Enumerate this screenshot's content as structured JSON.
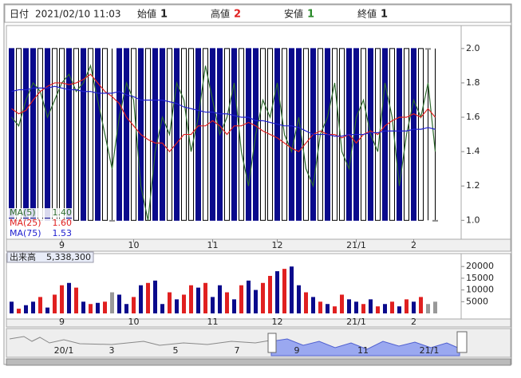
{
  "header": {
    "date_label": "日付",
    "date": "2021/02/10 11:03",
    "open_label": "始値",
    "open": 1,
    "high_label": "高値",
    "high": 2,
    "low_label": "安値",
    "low": 1,
    "close_label": "終値",
    "close": 1
  },
  "chart_data": [
    {
      "type": "candlestick",
      "open": [
        2,
        1,
        2,
        2,
        1,
        2,
        1,
        1,
        2,
        1,
        2,
        1,
        2,
        1,
        1,
        2,
        2,
        1,
        2,
        1,
        2,
        2,
        1,
        2,
        1,
        1,
        2,
        1,
        2,
        2,
        1,
        2,
        1,
        2,
        2,
        1,
        1,
        2,
        1,
        2,
        2,
        1,
        2,
        1,
        2,
        1,
        1,
        2,
        2,
        1,
        2,
        1,
        2,
        1,
        2,
        1,
        2,
        1,
        2,
        1
      ],
      "close": [
        1,
        2,
        1,
        1,
        2,
        1,
        2,
        2,
        1,
        2,
        1,
        2,
        1,
        2,
        1,
        1,
        1,
        2,
        1,
        2,
        1,
        1,
        2,
        1,
        2,
        2,
        1,
        2,
        1,
        1,
        2,
        1,
        2,
        1,
        1,
        2,
        2,
        1,
        2,
        1,
        1,
        2,
        1,
        2,
        1,
        2,
        2,
        1,
        1,
        2,
        1,
        2,
        1,
        2,
        1,
        2,
        1,
        2,
        2,
        1
      ],
      "high": [
        2,
        2,
        2,
        2,
        2,
        2,
        2,
        2,
        2,
        2,
        2,
        2,
        2,
        2,
        2,
        2,
        2,
        2,
        2,
        2,
        2,
        2,
        2,
        2,
        2,
        2,
        2,
        2,
        2,
        2,
        2,
        2,
        2,
        2,
        2,
        2,
        2,
        2,
        2,
        2,
        2,
        2,
        2,
        2,
        2,
        2,
        2,
        2,
        2,
        2,
        2,
        2,
        2,
        2,
        2,
        2,
        2,
        2,
        2,
        2
      ],
      "low": [
        1,
        1,
        1,
        1,
        1,
        1,
        1,
        1,
        1,
        1,
        1,
        1,
        1,
        1,
        1,
        1,
        1,
        1,
        1,
        1,
        1,
        1,
        1,
        1,
        1,
        1,
        1,
        1,
        1,
        1,
        1,
        1,
        1,
        1,
        1,
        1,
        1,
        1,
        1,
        1,
        1,
        1,
        1,
        1,
        1,
        1,
        1,
        1,
        1,
        1,
        1,
        1,
        1,
        1,
        1,
        1,
        1,
        1,
        1,
        1
      ],
      "up_color": "#ffffff",
      "down_color": "#0a0a8c",
      "flat_color": "#888888",
      "series": [
        {
          "name": "MA(5)",
          "color": "#2e6b2e",
          "legend_value": {
            "value": 1.4,
            "label": "1.40"
          },
          "values": [
            1.6,
            1.55,
            1.7,
            1.8,
            1.75,
            1.6,
            1.7,
            1.8,
            1.85,
            1.75,
            1.8,
            1.9,
            1.7,
            1.5,
            1.3,
            1.6,
            1.8,
            1.7,
            1.2,
            1.0,
            1.4,
            1.6,
            1.5,
            1.8,
            1.7,
            1.4,
            1.6,
            1.9,
            1.7,
            1.5,
            1.6,
            1.8,
            1.4,
            1.2,
            1.5,
            1.7,
            1.6,
            1.8,
            1.5,
            1.4,
            1.6,
            1.3,
            1.2,
            1.5,
            1.6,
            1.8,
            1.4,
            1.3,
            1.6,
            1.7,
            1.5,
            1.4,
            1.8,
            1.6,
            1.2,
            1.5,
            1.7,
            1.6,
            1.8,
            1.4
          ]
        },
        {
          "name": "MA(25)",
          "color": "#e02020",
          "legend_value": {
            "value": 1.6,
            "label": "1.60"
          },
          "values": [
            1.65,
            1.62,
            1.64,
            1.7,
            1.75,
            1.78,
            1.8,
            1.8,
            1.79,
            1.8,
            1.82,
            1.85,
            1.8,
            1.75,
            1.72,
            1.68,
            1.6,
            1.55,
            1.5,
            1.47,
            1.45,
            1.45,
            1.4,
            1.45,
            1.5,
            1.5,
            1.55,
            1.55,
            1.58,
            1.55,
            1.5,
            1.55,
            1.55,
            1.57,
            1.55,
            1.52,
            1.5,
            1.48,
            1.45,
            1.42,
            1.4,
            1.45,
            1.5,
            1.52,
            1.5,
            1.5,
            1.48,
            1.5,
            1.45,
            1.5,
            1.52,
            1.5,
            1.55,
            1.58,
            1.6,
            1.6,
            1.62,
            1.6,
            1.65,
            1.6
          ]
        },
        {
          "name": "MA(75)",
          "color": "#2020d0",
          "legend_value": {
            "value": 1.53,
            "label": "1.53"
          },
          "values": [
            1.75,
            1.76,
            1.76,
            1.77,
            1.77,
            1.77,
            1.78,
            1.77,
            1.76,
            1.76,
            1.75,
            1.75,
            1.74,
            1.74,
            1.74,
            1.75,
            1.73,
            1.72,
            1.7,
            1.7,
            1.7,
            1.7,
            1.69,
            1.68,
            1.66,
            1.65,
            1.64,
            1.63,
            1.63,
            1.62,
            1.62,
            1.61,
            1.6,
            1.6,
            1.58,
            1.58,
            1.57,
            1.56,
            1.55,
            1.55,
            1.54,
            1.52,
            1.5,
            1.5,
            1.5,
            1.49,
            1.49,
            1.5,
            1.5,
            1.5,
            1.51,
            1.51,
            1.52,
            1.52,
            1.52,
            1.52,
            1.53,
            1.53,
            1.54,
            1.53
          ]
        }
      ],
      "ylim": [
        0.89,
        2.12
      ],
      "yticks": [
        {
          "value": 1,
          "label": "1.0"
        },
        1.2,
        1.4,
        1.6,
        1.8,
        {
          "value": 2,
          "label": "2.0"
        }
      ],
      "xticks": [
        {
          "value": 7,
          "label": "9"
        },
        {
          "value": 17,
          "label": "10"
        },
        {
          "value": 28,
          "label": "11"
        },
        {
          "value": 37,
          "label": "12"
        },
        {
          "value": 48,
          "label": "21/1"
        },
        {
          "value": 56,
          "label": "2"
        }
      ]
    },
    {
      "type": "bar",
      "title": "出来高",
      "total": {
        "value": 5338300,
        "label": "5,338,300"
      },
      "values": [
        5000,
        2000,
        3500,
        5000,
        7000,
        2500,
        8000,
        12000,
        13000,
        11000,
        5000,
        4000,
        4500,
        5000,
        9000,
        8000,
        4000,
        7000,
        12000,
        13000,
        14000,
        4000,
        9000,
        6000,
        8000,
        12000,
        11000,
        13000,
        7000,
        12000,
        9000,
        6000,
        12000,
        14000,
        10000,
        13000,
        16000,
        18000,
        19000,
        20000,
        12000,
        9000,
        7000,
        5000,
        4000,
        3000,
        8000,
        6000,
        5000,
        4000,
        6000,
        3000,
        4000,
        5000,
        3000,
        6000,
        5000,
        7000,
        4000,
        5000
      ],
      "up_color": "#e02020",
      "down_color": "#0a0a8c",
      "flat_color": "#999999",
      "ylim": [
        0,
        25000
      ],
      "yticks": [
        5000,
        10000,
        15000,
        20000
      ]
    }
  ],
  "navigator": {
    "labels": [
      "20/1",
      "3",
      "5",
      "7",
      "9",
      "11",
      "21/1"
    ]
  }
}
